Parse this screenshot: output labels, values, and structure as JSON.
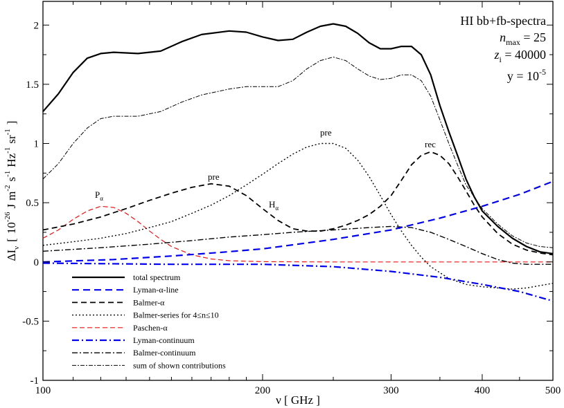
{
  "chart_data": {
    "type": "line",
    "xscale": "log",
    "xlim": [
      100,
      500
    ],
    "ylim": [
      -1,
      2.2
    ],
    "xticks": [
      {
        "v": 100,
        "label": "100"
      },
      {
        "v": 200,
        "label": "200"
      },
      {
        "v": 300,
        "label": "300"
      },
      {
        "v": 400,
        "label": "400"
      },
      {
        "v": 500,
        "label": "500"
      }
    ],
    "yticks": [
      {
        "v": -1,
        "label": "-1"
      },
      {
        "v": -0.5,
        "label": "-0.5"
      },
      {
        "v": 0,
        "label": "0"
      },
      {
        "v": 0.5,
        "label": "0.5"
      },
      {
        "v": 1,
        "label": "1"
      },
      {
        "v": 1.5,
        "label": "1.5"
      },
      {
        "v": 2,
        "label": "2"
      }
    ],
    "xlabel": "ν [ GHz ]",
    "ylabel": {
      "delta_i": "ΔI",
      "nu_sub": "ν",
      "bracket_open": "[",
      "mantissa": "10",
      "exp": "-26",
      "unit_j": "J",
      "unit_m": "m",
      "m_exp": "-2",
      "unit_s": "s",
      "s_exp": "-1",
      "unit_hz": "Hz",
      "hz_exp": "-1",
      "unit_sr": "sr",
      "sr_exp": "-1",
      "bracket_close": "]"
    },
    "params": {
      "title": "HI bb+fb-spectra",
      "n_var": "n",
      "n_sub": "max",
      "n_val": " = 25",
      "z_var": "z",
      "z_sub": "i",
      "z_val": " = 40000",
      "y_lhs": "y = 10",
      "y_exp": "-5"
    },
    "annotations": {
      "pre1": "pre",
      "pre2": "pre",
      "rec": "rec",
      "h_alpha": "H",
      "h_alpha_sub": "α",
      "p_alpha": "P",
      "p_alpha_sub": "α"
    },
    "series": [
      {
        "name": "total spectrum",
        "color": "#000000",
        "width": 2.2,
        "dash": "",
        "points": [
          [
            100,
            1.27
          ],
          [
            105,
            1.42
          ],
          [
            110,
            1.6
          ],
          [
            115,
            1.72
          ],
          [
            120,
            1.76
          ],
          [
            125,
            1.77
          ],
          [
            135,
            1.76
          ],
          [
            145,
            1.78
          ],
          [
            155,
            1.86
          ],
          [
            165,
            1.92
          ],
          [
            180,
            1.95
          ],
          [
            190,
            1.94
          ],
          [
            200,
            1.9
          ],
          [
            210,
            1.87
          ],
          [
            220,
            1.88
          ],
          [
            230,
            1.94
          ],
          [
            240,
            1.99
          ],
          [
            250,
            2.01
          ],
          [
            260,
            1.99
          ],
          [
            270,
            1.93
          ],
          [
            280,
            1.85
          ],
          [
            290,
            1.8
          ],
          [
            300,
            1.8
          ],
          [
            310,
            1.82
          ],
          [
            320,
            1.82
          ],
          [
            330,
            1.75
          ],
          [
            340,
            1.58
          ],
          [
            350,
            1.32
          ],
          [
            360,
            1.1
          ],
          [
            370,
            0.9
          ],
          [
            380,
            0.7
          ],
          [
            390,
            0.55
          ],
          [
            400,
            0.43
          ],
          [
            420,
            0.3
          ],
          [
            440,
            0.2
          ],
          [
            460,
            0.13
          ],
          [
            480,
            0.085
          ],
          [
            500,
            0.07
          ]
        ]
      },
      {
        "name": "Lyman-α-line",
        "color": "#0000ee",
        "width": 2.2,
        "dash": "10 6",
        "points": [
          [
            100,
            0
          ],
          [
            125,
            0.02
          ],
          [
            150,
            0.05
          ],
          [
            175,
            0.08
          ],
          [
            200,
            0.11
          ],
          [
            250,
            0.19
          ],
          [
            300,
            0.27
          ],
          [
            350,
            0.37
          ],
          [
            400,
            0.47
          ],
          [
            450,
            0.57
          ],
          [
            500,
            0.68
          ]
        ]
      },
      {
        "name": "Balmer-α",
        "color": "#000000",
        "width": 1.8,
        "dash": "8 5",
        "points": [
          [
            100,
            0.27
          ],
          [
            110,
            0.32
          ],
          [
            120,
            0.38
          ],
          [
            130,
            0.45
          ],
          [
            140,
            0.52
          ],
          [
            150,
            0.58
          ],
          [
            160,
            0.63
          ],
          [
            170,
            0.66
          ],
          [
            180,
            0.64
          ],
          [
            190,
            0.56
          ],
          [
            200,
            0.45
          ],
          [
            210,
            0.35
          ],
          [
            220,
            0.28
          ],
          [
            230,
            0.26
          ],
          [
            240,
            0.26
          ],
          [
            250,
            0.28
          ],
          [
            260,
            0.31
          ],
          [
            270,
            0.35
          ],
          [
            280,
            0.4
          ],
          [
            290,
            0.47
          ],
          [
            300,
            0.56
          ],
          [
            310,
            0.69
          ],
          [
            320,
            0.82
          ],
          [
            330,
            0.9
          ],
          [
            340,
            0.93
          ],
          [
            350,
            0.9
          ],
          [
            360,
            0.83
          ],
          [
            370,
            0.72
          ],
          [
            380,
            0.6
          ],
          [
            390,
            0.48
          ],
          [
            400,
            0.38
          ],
          [
            420,
            0.24
          ],
          [
            440,
            0.15
          ],
          [
            460,
            0.1
          ],
          [
            480,
            0.075
          ],
          [
            500,
            0.06
          ]
        ]
      },
      {
        "name": "Balmer-series for 4≤n≤10",
        "color": "#000000",
        "width": 1.4,
        "dash": "2 3",
        "points": [
          [
            100,
            0.14
          ],
          [
            110,
            0.17
          ],
          [
            120,
            0.2
          ],
          [
            130,
            0.24
          ],
          [
            140,
            0.29
          ],
          [
            150,
            0.34
          ],
          [
            160,
            0.41
          ],
          [
            170,
            0.48
          ],
          [
            180,
            0.56
          ],
          [
            190,
            0.65
          ],
          [
            200,
            0.74
          ],
          [
            210,
            0.83
          ],
          [
            220,
            0.91
          ],
          [
            230,
            0.97
          ],
          [
            240,
            1.0
          ],
          [
            250,
            1.0
          ],
          [
            260,
            0.96
          ],
          [
            270,
            0.86
          ],
          [
            280,
            0.72
          ],
          [
            290,
            0.56
          ],
          [
            300,
            0.4
          ],
          [
            310,
            0.26
          ],
          [
            320,
            0.14
          ],
          [
            330,
            0.04
          ],
          [
            340,
            -0.04
          ],
          [
            360,
            -0.14
          ],
          [
            380,
            -0.19
          ],
          [
            400,
            -0.21
          ],
          [
            420,
            -0.22
          ],
          [
            440,
            -0.23
          ],
          [
            460,
            -0.22
          ],
          [
            480,
            -0.2
          ],
          [
            500,
            -0.18
          ]
        ]
      },
      {
        "name": "Paschen-α",
        "color": "#ee1111",
        "width": 1.2,
        "dash": "7 4",
        "points": [
          [
            100,
            0.2
          ],
          [
            105,
            0.27
          ],
          [
            110,
            0.36
          ],
          [
            115,
            0.43
          ],
          [
            120,
            0.47
          ],
          [
            125,
            0.46
          ],
          [
            130,
            0.41
          ],
          [
            135,
            0.34
          ],
          [
            140,
            0.26
          ],
          [
            145,
            0.19
          ],
          [
            150,
            0.13
          ],
          [
            160,
            0.06
          ],
          [
            170,
            0.025
          ],
          [
            180,
            0.01
          ],
          [
            200,
            0.002
          ],
          [
            250,
            0
          ],
          [
            500,
            0
          ]
        ]
      },
      {
        "name": "Lyman-continuum",
        "color": "#0000ee",
        "width": 2.2,
        "dash": "10 4 2 4",
        "points": [
          [
            100,
            -0.01
          ],
          [
            150,
            -0.02
          ],
          [
            200,
            -0.02
          ],
          [
            250,
            -0.04
          ],
          [
            300,
            -0.08
          ],
          [
            350,
            -0.13
          ],
          [
            400,
            -0.19
          ],
          [
            450,
            -0.25
          ],
          [
            500,
            -0.33
          ]
        ]
      },
      {
        "name": "Balmer-continuum",
        "color": "#000000",
        "width": 1.4,
        "dash": "8 3 2 3",
        "points": [
          [
            100,
            0.09
          ],
          [
            120,
            0.12
          ],
          [
            140,
            0.15
          ],
          [
            160,
            0.18
          ],
          [
            180,
            0.21
          ],
          [
            200,
            0.23
          ],
          [
            220,
            0.25
          ],
          [
            250,
            0.27
          ],
          [
            280,
            0.29
          ],
          [
            300,
            0.3
          ],
          [
            320,
            0.29
          ],
          [
            340,
            0.25
          ],
          [
            360,
            0.19
          ],
          [
            380,
            0.13
          ],
          [
            400,
            0.07
          ],
          [
            420,
            0.02
          ],
          [
            440,
            -0.01
          ],
          [
            460,
            -0.02
          ],
          [
            480,
            -0.02
          ],
          [
            500,
            -0.02
          ]
        ]
      },
      {
        "name": "sum of shown contributions",
        "color": "#000000",
        "width": 1.0,
        "dash": "6 2 2 2",
        "points": [
          [
            100,
            0.7
          ],
          [
            105,
            0.83
          ],
          [
            110,
            1.0
          ],
          [
            115,
            1.13
          ],
          [
            120,
            1.21
          ],
          [
            125,
            1.23
          ],
          [
            135,
            1.23
          ],
          [
            145,
            1.27
          ],
          [
            155,
            1.35
          ],
          [
            165,
            1.41
          ],
          [
            180,
            1.46
          ],
          [
            190,
            1.48
          ],
          [
            200,
            1.48
          ],
          [
            210,
            1.48
          ],
          [
            220,
            1.53
          ],
          [
            230,
            1.63
          ],
          [
            240,
            1.7
          ],
          [
            250,
            1.73
          ],
          [
            260,
            1.7
          ],
          [
            270,
            1.63
          ],
          [
            280,
            1.57
          ],
          [
            290,
            1.54
          ],
          [
            300,
            1.55
          ],
          [
            310,
            1.58
          ],
          [
            320,
            1.58
          ],
          [
            330,
            1.53
          ],
          [
            340,
            1.4
          ],
          [
            350,
            1.2
          ],
          [
            360,
            1.0
          ],
          [
            370,
            0.82
          ],
          [
            380,
            0.65
          ],
          [
            400,
            0.45
          ],
          [
            420,
            0.32
          ],
          [
            440,
            0.22
          ],
          [
            460,
            0.16
          ],
          [
            480,
            0.13
          ],
          [
            500,
            0.12
          ]
        ]
      }
    ]
  }
}
